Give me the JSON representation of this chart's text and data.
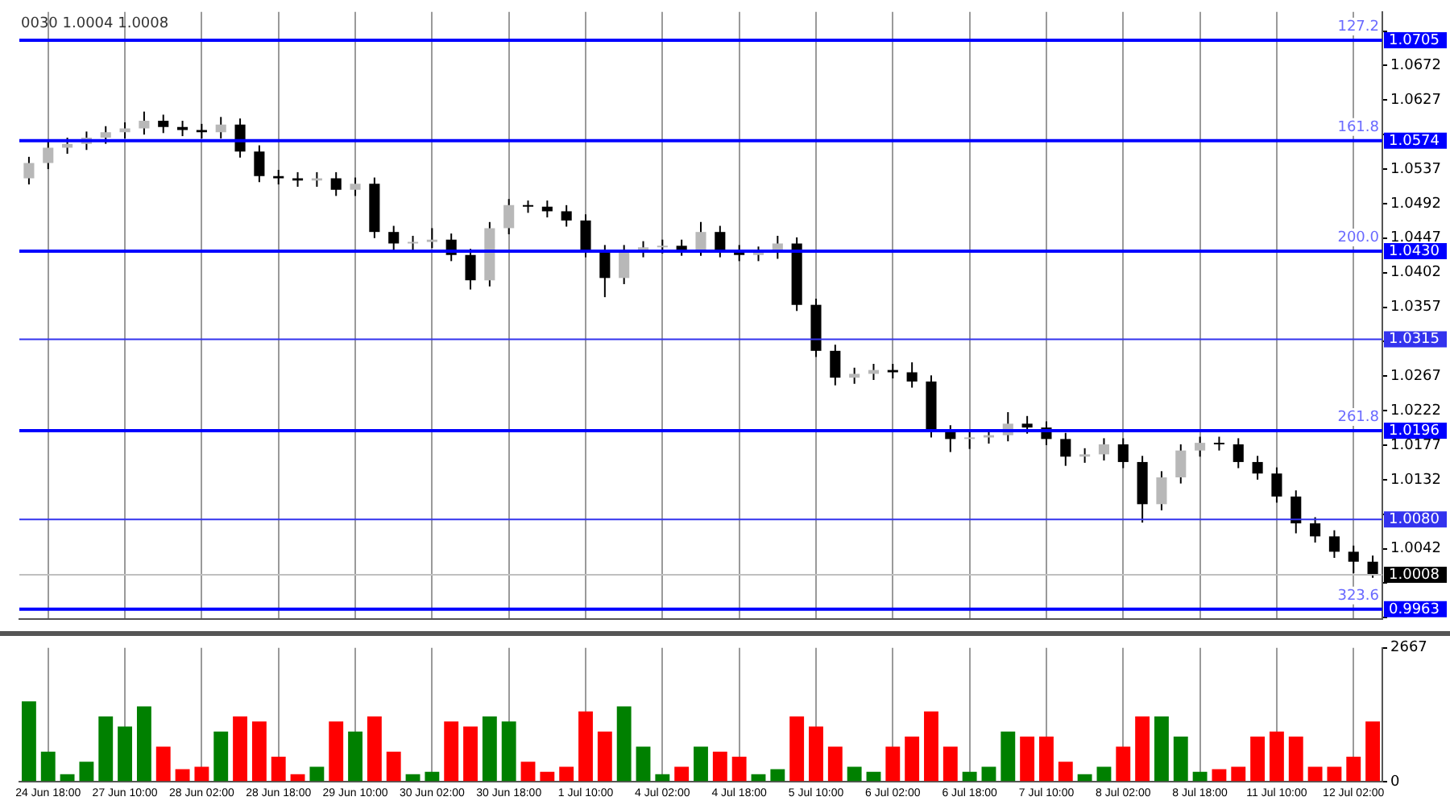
{
  "chart_data": [
    {
      "type": "candlestick",
      "annotations": [
        "0030 1.0004 1.0008",
        {
          "text": "127.2",
          "y": 1.0705
        },
        {
          "text": "161.8",
          "y": 1.0574
        },
        {
          "text": "200.0",
          "y": 1.043
        },
        {
          "text": "261.8",
          "y": 1.0196
        },
        {
          "text": "323.6",
          "y": 0.9963
        }
      ],
      "categories": [
        null,
        null,
        null,
        null,
        null,
        null,
        null,
        null,
        null,
        null,
        null,
        null,
        null,
        null,
        null,
        null,
        null,
        null,
        null,
        null,
        null,
        null,
        null,
        null,
        null,
        null,
        null,
        null,
        null,
        null,
        null,
        null,
        null,
        null,
        null,
        null,
        null,
        null,
        null,
        null,
        null,
        null,
        null,
        null,
        null,
        null,
        null,
        null,
        null,
        null,
        null,
        null,
        null,
        null,
        null,
        null,
        null,
        null,
        null,
        null,
        null,
        null,
        null,
        null,
        null,
        null,
        null,
        null,
        null,
        null,
        null
      ],
      "ohlc": [
        [
          1.0525,
          1.0553,
          1.0517,
          1.0545
        ],
        [
          1.0545,
          1.0573,
          1.0537,
          1.0565
        ],
        [
          1.0565,
          1.0578,
          1.0557,
          1.057
        ],
        [
          1.057,
          1.0586,
          1.0562,
          1.0578
        ],
        [
          1.0578,
          1.0593,
          1.057,
          1.0585
        ],
        [
          1.0585,
          1.0598,
          1.0577,
          1.059
        ],
        [
          1.059,
          1.0612,
          1.0582,
          1.06
        ],
        [
          1.06,
          1.0608,
          1.0584,
          1.0592
        ],
        [
          1.0592,
          1.06,
          1.058,
          1.0588
        ],
        [
          1.0588,
          1.0596,
          1.0577,
          1.0585
        ],
        [
          1.0585,
          1.0605,
          1.0577,
          1.0595
        ],
        [
          1.0595,
          1.0603,
          1.0552,
          1.056
        ],
        [
          1.056,
          1.0568,
          1.052,
          1.0528
        ],
        [
          1.0528,
          1.0536,
          1.0517,
          1.0525
        ],
        [
          1.0525,
          1.0533,
          1.0514,
          1.0522
        ],
        [
          1.0522,
          1.0533,
          1.0514,
          1.0525
        ],
        [
          1.0525,
          1.0533,
          1.0502,
          1.051
        ],
        [
          1.051,
          1.0526,
          1.0502,
          1.0518
        ],
        [
          1.0518,
          1.0526,
          1.0447,
          1.0455
        ],
        [
          1.0455,
          1.0463,
          1.0432,
          1.044
        ],
        [
          1.044,
          1.045,
          1.0432,
          1.0442
        ],
        [
          1.0442,
          1.046,
          1.0434,
          1.0445
        ],
        [
          1.0445,
          1.0453,
          1.0417,
          1.0425
        ],
        [
          1.0425,
          1.0433,
          1.038,
          1.0392
        ],
        [
          1.0392,
          1.0468,
          1.0384,
          1.046
        ],
        [
          1.046,
          1.0498,
          1.0452,
          1.049
        ],
        [
          1.049,
          1.0496,
          1.048,
          1.0488
        ],
        [
          1.0488,
          1.0496,
          1.0474,
          1.0482
        ],
        [
          1.0482,
          1.049,
          1.0462,
          1.047
        ],
        [
          1.047,
          1.0478,
          1.0422,
          1.043
        ],
        [
          1.043,
          1.0438,
          1.037,
          1.0395
        ],
        [
          1.0395,
          1.0438,
          1.0387,
          1.043
        ],
        [
          1.043,
          1.0443,
          1.0422,
          1.0435
        ],
        [
          1.0435,
          1.0445,
          1.0427,
          1.0437
        ],
        [
          1.0437,
          1.0445,
          1.0424,
          1.0432
        ],
        [
          1.0432,
          1.0468,
          1.0424,
          1.0455
        ],
        [
          1.0455,
          1.0463,
          1.0422,
          1.043
        ],
        [
          1.043,
          1.0438,
          1.0417,
          1.0425
        ],
        [
          1.0425,
          1.0436,
          1.0417,
          1.0428
        ],
        [
          1.0428,
          1.045,
          1.042,
          1.044
        ],
        [
          1.044,
          1.0448,
          1.0352,
          1.036
        ],
        [
          1.036,
          1.0368,
          1.0292,
          1.03
        ],
        [
          1.03,
          1.0308,
          1.0255,
          1.0265
        ],
        [
          1.0265,
          1.0278,
          1.0257,
          1.027
        ],
        [
          1.027,
          1.0283,
          1.0262,
          1.0275
        ],
        [
          1.0275,
          1.0283,
          1.0264,
          1.0272
        ],
        [
          1.0272,
          1.0285,
          1.0252,
          1.026
        ],
        [
          1.026,
          1.0268,
          1.0187,
          1.0195
        ],
        [
          1.0195,
          1.0203,
          1.0168,
          1.0185
        ],
        [
          1.0185,
          1.0195,
          1.0172,
          1.0187
        ],
        [
          1.0187,
          1.0198,
          1.0179,
          1.019
        ],
        [
          1.019,
          1.022,
          1.0182,
          1.0205
        ],
        [
          1.0205,
          1.0215,
          1.0192,
          1.02
        ],
        [
          1.02,
          1.0208,
          1.0177,
          1.0185
        ],
        [
          1.0185,
          1.0193,
          1.015,
          1.0162
        ],
        [
          1.0162,
          1.0173,
          1.0154,
          1.0165
        ],
        [
          1.0165,
          1.0186,
          1.0157,
          1.0178
        ],
        [
          1.0178,
          1.0186,
          1.0147,
          1.0155
        ],
        [
          1.0155,
          1.0163,
          1.0076,
          1.01
        ],
        [
          1.01,
          1.0143,
          1.0092,
          1.0135
        ],
        [
          1.0135,
          1.0178,
          1.0127,
          1.017
        ],
        [
          1.017,
          1.0188,
          1.0162,
          1.018
        ],
        [
          1.018,
          1.0188,
          1.017,
          1.0178
        ],
        [
          1.0178,
          1.0186,
          1.0147,
          1.0155
        ],
        [
          1.0155,
          1.0163,
          1.0132,
          1.014
        ],
        [
          1.014,
          1.0148,
          1.0102,
          1.011
        ],
        [
          1.011,
          1.0118,
          1.0062,
          1.0075
        ],
        [
          1.0075,
          1.0083,
          1.005,
          1.0058
        ],
        [
          1.0058,
          1.0066,
          1.003,
          1.0038
        ],
        [
          1.0038,
          1.0046,
          1.001,
          1.0025
        ],
        [
          1.0025,
          1.0033,
          1.0004,
          1.0008
        ]
      ],
      "ylim": [
        0.995,
        1.0742
      ],
      "yticks": [
        {
          "value": 0.9952,
          "label": null
        },
        {
          "value": 0.9997,
          "label": null
        },
        1.0042,
        {
          "value": 1.0087,
          "label": null
        },
        1.0132,
        1.0177,
        1.0222,
        1.0267,
        {
          "value": 1.0312,
          "label": null
        },
        1.0357,
        1.0402,
        1.0447,
        1.0492,
        1.0537,
        {
          "value": 1.0582,
          "label": null
        },
        1.0627,
        1.0672,
        {
          "value": 1.0717,
          "label": null
        }
      ],
      "ref_lines": [
        {
          "axis": "y",
          "value": 1.0705,
          "label": "1.0705",
          "color": "#0000ff",
          "line_style": "solid"
        },
        {
          "axis": "y",
          "value": 1.0574,
          "label": "1.0574",
          "color": "#0000ff",
          "line_style": "solid"
        },
        {
          "axis": "y",
          "value": 1.043,
          "label": "1.0430",
          "color": "#0000ff",
          "line_style": "solid"
        },
        {
          "axis": "y",
          "value": 1.0315,
          "label": "1.0315",
          "color": "#3333ee"
        },
        {
          "axis": "y",
          "value": 1.0196,
          "label": "1.0196",
          "color": "#0000ff",
          "line_style": "solid"
        },
        {
          "axis": "y",
          "value": 1.008,
          "label": "1.0080",
          "color": "#3333ee"
        },
        {
          "axis": "y",
          "value": 1.0008,
          "label": "1.0008",
          "color": "#c0c0c0"
        },
        {
          "axis": "y",
          "value": 0.9963,
          "label": "0.9963",
          "color": "#0000ff",
          "line_style": "solid"
        }
      ],
      "grid": "x",
      "tick_labels": "y"
    },
    {
      "type": "bar",
      "categories": [
        null,
        "24 Jun 18:00",
        null,
        null,
        null,
        "27 Jun 10:00",
        null,
        null,
        null,
        "28 Jun 02:00",
        null,
        null,
        null,
        "28 Jun 18:00",
        null,
        null,
        null,
        "29 Jun 10:00",
        null,
        null,
        null,
        "30 Jun 02:00",
        null,
        null,
        null,
        "30 Jun 18:00",
        null,
        null,
        null,
        "1 Jul 10:00",
        null,
        null,
        null,
        "4 Jul 02:00",
        null,
        null,
        null,
        "4 Jul 18:00",
        null,
        null,
        null,
        "5 Jul 10:00",
        null,
        null,
        null,
        "6 Jul 02:00",
        null,
        null,
        null,
        "6 Jul 18:00",
        null,
        null,
        null,
        "7 Jul 10:00",
        null,
        null,
        null,
        "8 Jul 02:00",
        null,
        null,
        null,
        "8 Jul 18:00",
        null,
        null,
        null,
        "11 Jul 10:00",
        null,
        null,
        null,
        "12 Jul 02:00",
        null
      ],
      "values": [
        1600,
        600,
        150,
        400,
        1300,
        1100,
        1500,
        700,
        250,
        300,
        1000,
        1300,
        1200,
        500,
        150,
        300,
        1200,
        1000,
        1300,
        600,
        150,
        200,
        1200,
        1100,
        1300,
        1200,
        400,
        200,
        300,
        1400,
        1000,
        1500,
        700,
        150,
        300,
        700,
        600,
        500,
        150,
        250,
        1300,
        1100,
        700,
        300,
        200,
        700,
        900,
        1400,
        700,
        200,
        300,
        1000,
        900,
        900,
        400,
        150,
        300,
        700,
        1300,
        1300,
        900,
        200,
        250,
        300,
        900,
        1000,
        900,
        300,
        300,
        500,
        1200
      ],
      "colors": [
        "#008000",
        "#008000",
        "#008000",
        "#008000",
        "#008000",
        "#008000",
        "#008000",
        "#ff0000",
        "#ff0000",
        "#ff0000",
        "#008000",
        "#ff0000",
        "#ff0000",
        "#ff0000",
        "#ff0000",
        "#008000",
        "#ff0000",
        "#008000",
        "#ff0000",
        "#ff0000",
        "#008000",
        "#008000",
        "#ff0000",
        "#ff0000",
        "#008000",
        "#008000",
        "#ff0000",
        "#ff0000",
        "#ff0000",
        "#ff0000",
        "#ff0000",
        "#008000",
        "#008000",
        "#008000",
        "#ff0000",
        "#008000",
        "#ff0000",
        "#ff0000",
        "#008000",
        "#008000",
        "#ff0000",
        "#ff0000",
        "#ff0000",
        "#008000",
        "#008000",
        "#ff0000",
        "#ff0000",
        "#ff0000",
        "#ff0000",
        "#008000",
        "#008000",
        "#008000",
        "#ff0000",
        "#ff0000",
        "#ff0000",
        "#008000",
        "#008000",
        "#ff0000",
        "#ff0000",
        "#008000",
        "#008000",
        "#008000",
        "#ff0000",
        "#ff0000",
        "#ff0000",
        "#ff0000",
        "#ff0000",
        "#ff0000",
        "#ff0000",
        "#ff0000",
        "#ff0000"
      ],
      "ylim": [
        0,
        2667
      ],
      "yticks": [
        0,
        2667
      ],
      "grid": "x"
    }
  ]
}
